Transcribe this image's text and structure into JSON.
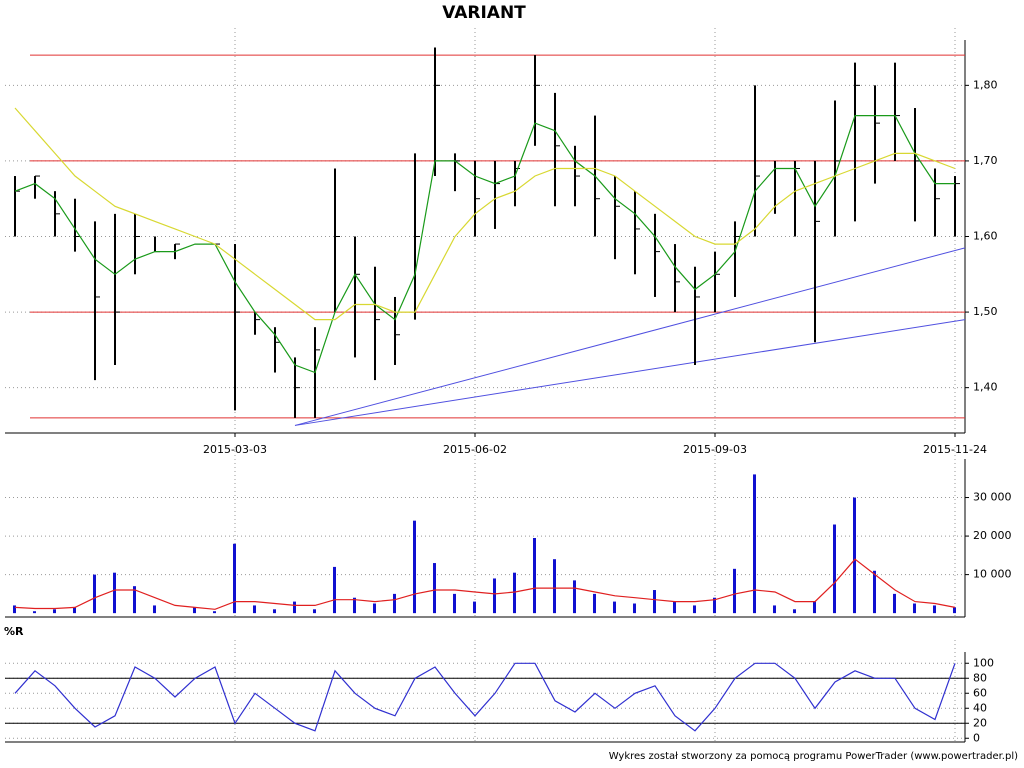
{
  "chart_data": {
    "type": "ohlc",
    "title": "VARIANT",
    "categories": [
      null,
      null,
      null,
      null,
      null,
      null,
      null,
      null,
      null,
      null,
      null,
      "2015-03-03",
      null,
      null,
      null,
      null,
      null,
      null,
      null,
      null,
      null,
      null,
      null,
      "2015-06-02",
      null,
      null,
      null,
      null,
      null,
      null,
      null,
      null,
      null,
      null,
      null,
      "2015-09-03",
      null,
      null,
      null,
      null,
      null,
      null,
      null,
      null,
      null,
      null,
      null,
      "2015-11-24"
    ],
    "high": [
      1.68,
      1.68,
      1.66,
      1.65,
      1.62,
      1.63,
      1.63,
      1.6,
      1.59,
      1.59,
      1.59,
      1.59,
      1.5,
      1.48,
      1.44,
      1.48,
      1.69,
      1.6,
      1.56,
      1.52,
      1.71,
      1.85,
      1.71,
      1.7,
      1.7,
      1.7,
      1.84,
      1.79,
      1.72,
      1.76,
      1.68,
      1.66,
      1.63,
      1.59,
      1.56,
      1.58,
      1.62,
      1.8,
      1.7,
      1.7,
      1.7,
      1.78,
      1.83,
      1.8,
      1.83,
      1.77,
      1.69,
      1.68
    ],
    "low": [
      1.6,
      1.65,
      1.6,
      1.58,
      1.41,
      1.43,
      1.55,
      1.58,
      1.57,
      1.59,
      1.59,
      1.37,
      1.47,
      1.42,
      1.36,
      1.36,
      1.5,
      1.44,
      1.41,
      1.43,
      1.49,
      1.68,
      1.66,
      1.6,
      1.61,
      1.64,
      1.72,
      1.64,
      1.64,
      1.6,
      1.57,
      1.55,
      1.52,
      1.5,
      1.43,
      1.5,
      1.52,
      1.6,
      1.63,
      1.6,
      1.46,
      1.6,
      1.62,
      1.67,
      1.7,
      1.62,
      1.6,
      1.6
    ],
    "close": [
      1.66,
      1.68,
      1.63,
      1.6,
      1.52,
      1.5,
      1.6,
      1.58,
      1.59,
      1.59,
      1.59,
      1.5,
      1.49,
      1.46,
      1.4,
      1.45,
      1.6,
      1.55,
      1.49,
      1.47,
      1.6,
      1.8,
      1.7,
      1.65,
      1.67,
      1.69,
      1.8,
      1.72,
      1.68,
      1.65,
      1.64,
      1.61,
      1.58,
      1.54,
      1.52,
      1.55,
      1.6,
      1.68,
      1.69,
      1.69,
      1.62,
      1.7,
      1.8,
      1.75,
      1.76,
      1.7,
      1.65,
      1.67
    ],
    "series": [
      {
        "color": "#1a9a1a",
        "values": [
          1.66,
          1.67,
          1.65,
          1.61,
          1.57,
          1.55,
          1.57,
          1.58,
          1.58,
          1.59,
          1.59,
          1.54,
          1.5,
          1.47,
          1.43,
          1.42,
          1.5,
          1.55,
          1.51,
          1.49,
          1.55,
          1.7,
          1.7,
          1.68,
          1.67,
          1.68,
          1.75,
          1.74,
          1.7,
          1.68,
          1.65,
          1.63,
          1.6,
          1.56,
          1.53,
          1.55,
          1.58,
          1.66,
          1.69,
          1.69,
          1.64,
          1.68,
          1.76,
          1.76,
          1.76,
          1.71,
          1.67,
          1.67
        ]
      },
      {
        "color": "#d8d832",
        "values": [
          1.77,
          1.74,
          1.71,
          1.68,
          1.66,
          1.64,
          1.63,
          1.62,
          1.61,
          1.6,
          1.59,
          1.57,
          1.55,
          1.53,
          1.51,
          1.49,
          1.49,
          1.51,
          1.51,
          1.5,
          1.5,
          1.55,
          1.6,
          1.63,
          1.65,
          1.66,
          1.68,
          1.69,
          1.69,
          1.69,
          1.68,
          1.66,
          1.64,
          1.62,
          1.6,
          1.59,
          1.59,
          1.61,
          1.64,
          1.66,
          1.67,
          1.68,
          1.69,
          1.7,
          1.71,
          1.71,
          1.7,
          1.69
        ]
      }
    ],
    "levels": [
      1.84,
      1.7,
      1.5,
      1.36
    ],
    "level_color": "#e03030",
    "trend_lines": [
      [
        1.35,
        1.585
      ],
      [
        1.35,
        1.49
      ]
    ],
    "trend_color": "#5050e0",
    "ylim": [
      1.34,
      1.86
    ],
    "yticks": [
      {
        "value": 1.4,
        "label": "1,40"
      },
      {
        "value": 1.5,
        "label": "1,50"
      },
      {
        "value": 1.6,
        "label": "1,60"
      },
      {
        "value": 1.7,
        "label": "1,70"
      },
      {
        "value": 1.8,
        "label": "1,80"
      }
    ],
    "volume": {
      "color": "#1010d0",
      "values": [
        2000,
        500,
        1000,
        1500,
        10000,
        10500,
        7000,
        2000,
        0,
        1500,
        500,
        18000,
        2000,
        1000,
        3000,
        1000,
        12000,
        4000,
        2500,
        5000,
        24000,
        13000,
        5000,
        3000,
        9000,
        10500,
        19500,
        14000,
        8500,
        5000,
        3000,
        2500,
        6000,
        3000,
        2000,
        4000,
        11500,
        36000,
        2000,
        1000,
        3000,
        23000,
        30000,
        11000,
        5000,
        2500,
        2000,
        1500
      ],
      "average": {
        "color": "#e02020",
        "values": [
          1500,
          1200,
          1200,
          1500,
          4000,
          6000,
          6000,
          4000,
          2000,
          1500,
          1000,
          3000,
          3000,
          2500,
          2000,
          2000,
          3500,
          3500,
          3000,
          3500,
          5000,
          6000,
          6000,
          5500,
          5000,
          5500,
          6500,
          6500,
          6500,
          5500,
          4500,
          4000,
          3500,
          3000,
          3000,
          3500,
          5000,
          6000,
          5500,
          3000,
          3000,
          8000,
          14000,
          10000,
          6000,
          3000,
          2500,
          1500
        ]
      },
      "ylim": [
        -1000,
        40000
      ],
      "yticks": [
        {
          "value": 10000,
          "label": "10 000"
        },
        {
          "value": 20000,
          "label": "20 000"
        },
        {
          "value": 30000,
          "label": "30 000"
        }
      ]
    },
    "williams_r": {
      "label": "%R",
      "color": "#3030d0",
      "values": [
        60,
        90,
        70,
        40,
        15,
        30,
        95,
        80,
        55,
        80,
        95,
        20,
        60,
        40,
        20,
        10,
        90,
        60,
        40,
        30,
        80,
        95,
        60,
        30,
        60,
        100,
        100,
        50,
        35,
        60,
        40,
        60,
        70,
        30,
        10,
        40,
        80,
        100,
        100,
        80,
        40,
        75,
        90,
        80,
        80,
        40,
        25,
        100
      ],
      "levels": [
        20,
        80
      ],
      "ylim": [
        -5,
        115
      ],
      "yticks": [
        0,
        20,
        40,
        60,
        80,
        100
      ]
    },
    "footer": "Wykres został stworzony za pomocą programu PowerTrader (www.powertrader.pl)"
  }
}
